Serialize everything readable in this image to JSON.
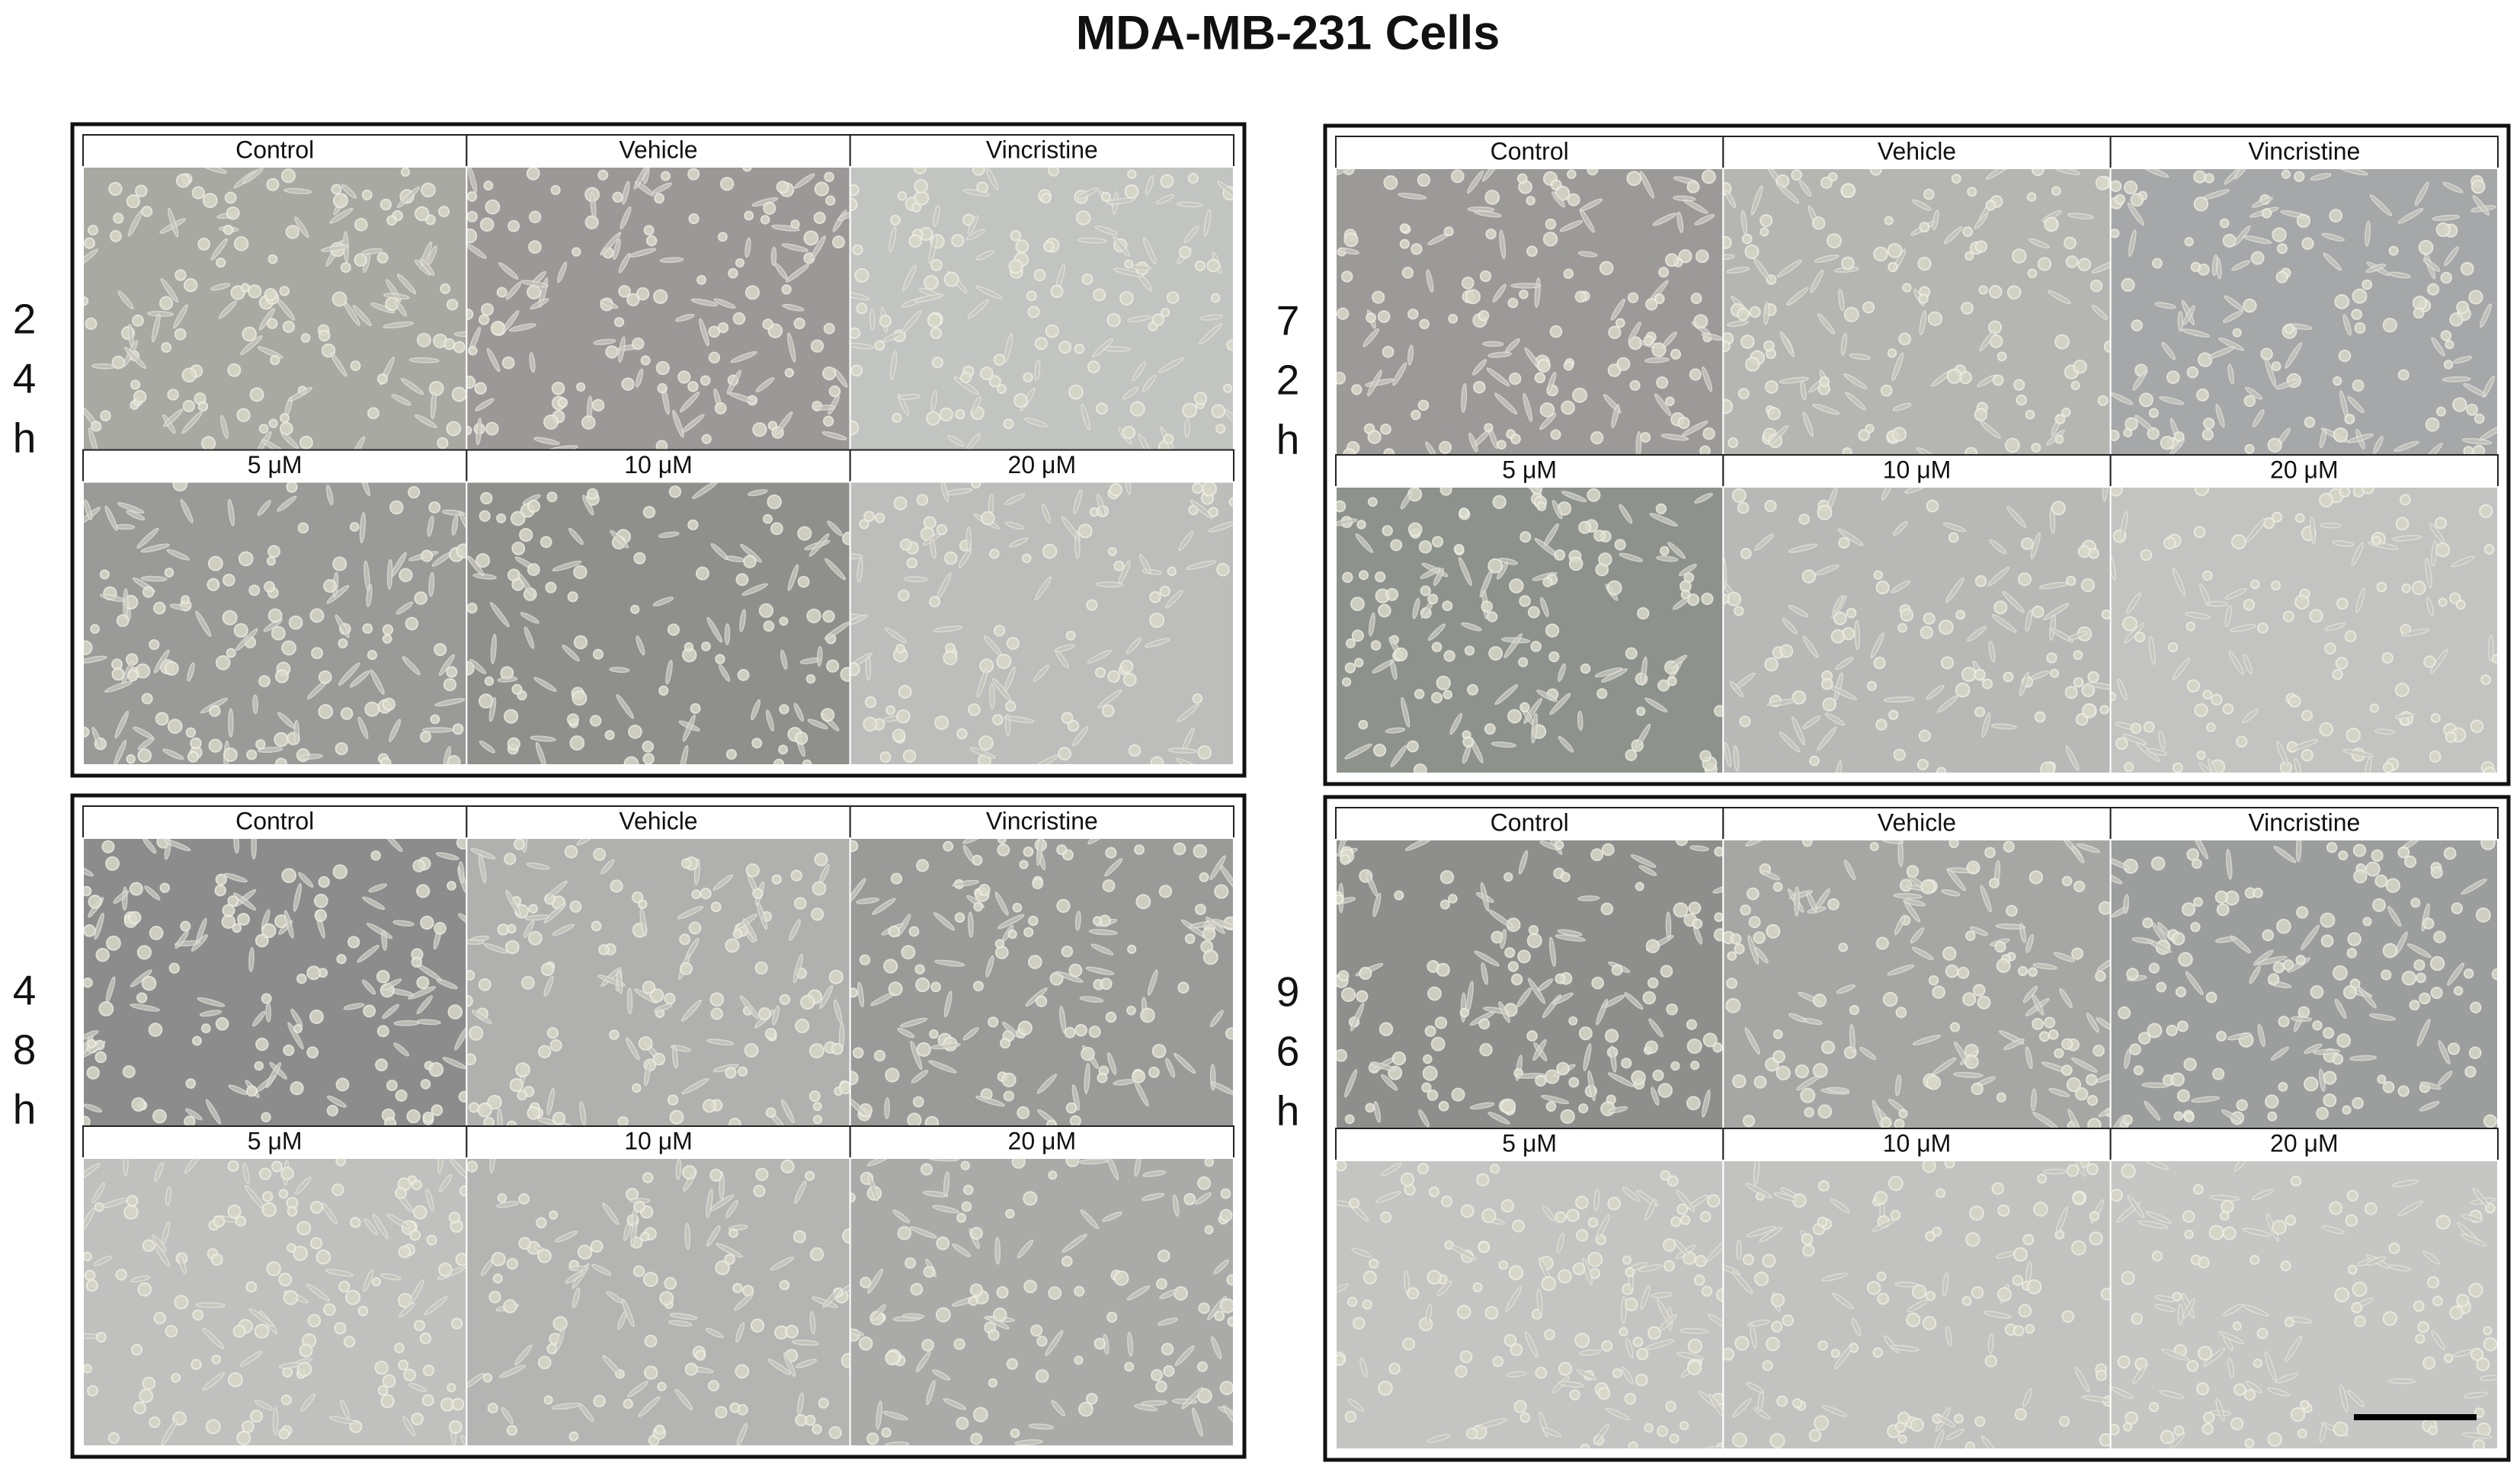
{
  "title": "MDA-MB-231 Cells",
  "panels": [
    {
      "time": [
        "2",
        "4",
        "h"
      ],
      "labels": [
        "Control",
        "Vehicle",
        "Vincristine",
        "5 μM",
        "10 μM",
        "20 μM"
      ]
    },
    {
      "time": [
        "7",
        "2",
        "h"
      ],
      "labels": [
        "Control",
        "Vehicle",
        "Vincristine",
        "5 μM",
        "10 μM",
        "20 μM"
      ]
    },
    {
      "time": [
        "4",
        "8",
        "h"
      ],
      "labels": [
        "Control",
        "Vehicle",
        "Vincristine",
        "5 μM",
        "10 μM",
        "20 μM"
      ]
    },
    {
      "time": [
        "9",
        "6",
        "h"
      ],
      "labels": [
        "Control",
        "Vehicle",
        "Vincristine",
        "5 μM",
        "10 μM",
        "20 μM"
      ]
    }
  ]
}
